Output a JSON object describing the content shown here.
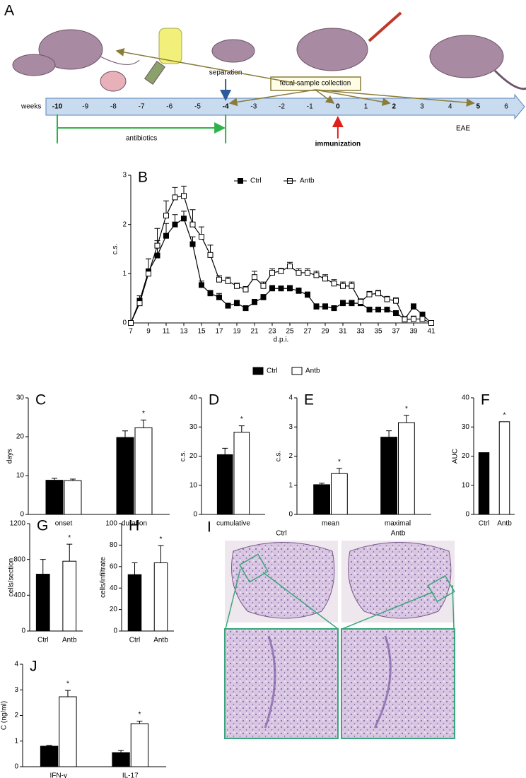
{
  "timeline": {
    "label": "A",
    "axis_label": "weeks",
    "ticks": [
      -10,
      -9,
      -8,
      -7,
      -6,
      -5,
      -4,
      -3,
      -2,
      -1,
      0,
      1,
      2,
      3,
      4,
      5,
      6
    ],
    "bold_weeks": [
      -10,
      -4,
      0,
      2,
      5
    ],
    "highlight_week": 0,
    "highlight_color": "#e0201b",
    "separation": {
      "label": "separation",
      "week": -4
    },
    "fecal_sample_collection": {
      "label": "fecal sample collection",
      "weeks": [
        -4,
        0,
        2,
        5
      ]
    },
    "antibiotics": {
      "label": "antibiotics",
      "weeks": [
        -10,
        -4
      ]
    },
    "immunization": {
      "label": "immunization",
      "week": 0
    },
    "disease": "EAE"
  },
  "chart_data": [
    {
      "panel": "B",
      "type": "line",
      "xlabel": "d.p.i.",
      "ylabel": "c.s.",
      "legend": "top",
      "x": [
        7,
        8,
        9,
        10,
        11,
        12,
        13,
        14,
        15,
        16,
        17,
        18,
        19,
        20,
        21,
        22,
        23,
        24,
        25,
        26,
        27,
        28,
        29,
        30,
        31,
        32,
        33,
        34,
        35,
        36,
        37,
        38,
        39,
        40,
        41
      ],
      "xlim": [
        7,
        41
      ],
      "xticks": [
        7,
        9,
        11,
        13,
        15,
        17,
        19,
        21,
        23,
        25,
        27,
        29,
        31,
        33,
        35,
        37,
        39,
        41
      ],
      "ylim": [
        0,
        3
      ],
      "yticks": [
        0,
        1,
        2,
        3
      ],
      "series": [
        {
          "name": "Ctrl",
          "marker": "filled",
          "color": "#000000",
          "values": [
            0,
            0.45,
            1.05,
            1.37,
            1.77,
            2.0,
            2.12,
            1.6,
            0.77,
            0.6,
            0.52,
            0.35,
            0.4,
            0.3,
            0.42,
            0.52,
            0.7,
            0.7,
            0.7,
            0.65,
            0.57,
            0.33,
            0.33,
            0.3,
            0.4,
            0.4,
            0.4,
            0.27,
            0.27,
            0.27,
            0.2,
            0.08,
            0.33,
            0.17,
            0
          ],
          "errors": [
            0,
            0.1,
            0.25,
            0.3,
            0.25,
            0.2,
            0.15,
            0.15,
            0.08,
            0.06,
            0.08,
            0.05,
            0.06,
            0.05,
            0.06,
            0.06,
            0.06,
            0.05,
            0.06,
            0.06,
            0.06,
            0.06,
            0.06,
            0.05,
            0.06,
            0.06,
            0.06,
            0.05,
            0.05,
            0.05,
            0.05,
            0.05,
            0.06,
            0.05,
            0
          ]
        },
        {
          "name": "Antb",
          "marker": "open",
          "color": "#000000",
          "values": [
            0,
            0.4,
            1.0,
            1.57,
            2.18,
            2.55,
            2.58,
            2.0,
            1.75,
            1.38,
            0.88,
            0.85,
            0.75,
            0.68,
            0.93,
            0.75,
            1.02,
            1.05,
            1.15,
            1.02,
            1.02,
            0.97,
            0.9,
            0.8,
            0.75,
            0.75,
            0.43,
            0.58,
            0.6,
            0.48,
            0.45,
            0.07,
            0.08,
            0.08,
            0
          ],
          "errors": [
            0,
            0.1,
            0.3,
            0.35,
            0.3,
            0.2,
            0.2,
            0.3,
            0.2,
            0.2,
            0.08,
            0.08,
            0.06,
            0.06,
            0.12,
            0.08,
            0.08,
            0.06,
            0.08,
            0.08,
            0.08,
            0.08,
            0.08,
            0.08,
            0.08,
            0.08,
            0.06,
            0.06,
            0.06,
            0.06,
            0.06,
            0.06,
            0.06,
            0.06,
            0
          ]
        }
      ]
    },
    {
      "panel": "C",
      "type": "bar",
      "ylabel": "days",
      "legend": "above",
      "categories": [
        "onset",
        "duration"
      ],
      "ylim": [
        0,
        30
      ],
      "yticks": [
        0,
        10,
        20,
        30
      ],
      "series": [
        {
          "name": "Ctrl",
          "fill": "#000000",
          "values": [
            8.8,
            19.8
          ],
          "errors": [
            0.5,
            1.7
          ]
        },
        {
          "name": "Antb",
          "fill": "#ffffff",
          "values": [
            8.7,
            22.3
          ],
          "errors": [
            0.4,
            2.0
          ],
          "significance": [
            null,
            "*"
          ]
        }
      ]
    },
    {
      "panel": "D",
      "type": "bar",
      "ylabel": "c.s.",
      "categories": [
        "cumulative"
      ],
      "ylim": [
        0,
        40
      ],
      "yticks": [
        0,
        10,
        20,
        30,
        40
      ],
      "series": [
        {
          "fill": "#000000",
          "values": [
            20.5
          ],
          "errors": [
            2.2
          ]
        },
        {
          "fill": "#ffffff",
          "values": [
            28.2
          ],
          "errors": [
            2.2
          ],
          "significance": [
            "*"
          ]
        }
      ]
    },
    {
      "panel": "E",
      "type": "bar",
      "ylabel": "c.s.",
      "categories": [
        "mean",
        "maximal"
      ],
      "ylim": [
        0,
        4
      ],
      "yticks": [
        0,
        1,
        2,
        3,
        4
      ],
      "series": [
        {
          "fill": "#000000",
          "values": [
            1.02,
            2.65
          ],
          "errors": [
            0.05,
            0.22
          ]
        },
        {
          "fill": "#ffffff",
          "values": [
            1.4,
            3.15
          ],
          "errors": [
            0.18,
            0.25
          ],
          "significance": [
            "*",
            "*"
          ]
        }
      ]
    },
    {
      "panel": "F",
      "type": "bar",
      "ylabel": "AUC",
      "categories": [
        "Ctrl",
        "Antb"
      ],
      "ylim": [
        0,
        40
      ],
      "yticks": [
        0,
        10,
        20,
        30,
        40
      ],
      "series": [
        {
          "colors": [
            "#000000",
            "#ffffff"
          ],
          "values": [
            21.2,
            31.8
          ],
          "significance": [
            null,
            "*"
          ]
        }
      ]
    },
    {
      "panel": "G",
      "type": "bar",
      "ylabel": "cells/section",
      "categories": [
        "Ctrl",
        "Antb"
      ],
      "ylim": [
        0,
        1200
      ],
      "yticks": [
        0,
        400,
        800,
        1200
      ],
      "series": [
        {
          "colors": [
            "#000000",
            "#ffffff"
          ],
          "values": [
            635,
            780
          ],
          "errors": [
            165,
            190
          ],
          "significance": [
            null,
            "*"
          ]
        }
      ]
    },
    {
      "panel": "H",
      "type": "bar",
      "ylabel": "cells/infiltrate",
      "categories": [
        "Ctrl",
        "Antb"
      ],
      "ylim": [
        0,
        100
      ],
      "yticks": [
        0,
        20,
        40,
        60,
        80,
        100
      ],
      "series": [
        {
          "colors": [
            "#000000",
            "#ffffff"
          ],
          "values": [
            52.5,
            63.5
          ],
          "errors": [
            11,
            16
          ],
          "significance": [
            null,
            "*"
          ]
        }
      ]
    },
    {
      "panel": "J",
      "type": "bar",
      "ylabel": "C (ng/ml)",
      "categories": [
        "IFN-γ",
        "IL-17"
      ],
      "ylim": [
        0,
        4
      ],
      "yticks": [
        0,
        1,
        2,
        3,
        4
      ],
      "series": [
        {
          "fill": "#000000",
          "values": [
            0.8,
            0.55
          ],
          "errors": [
            0.03,
            0.08
          ]
        },
        {
          "fill": "#ffffff",
          "values": [
            2.73,
            1.68
          ],
          "errors": [
            0.25,
            0.1
          ],
          "significance": [
            "*",
            "*"
          ]
        }
      ]
    }
  ],
  "histology": {
    "label": "I",
    "columns": [
      "Ctrl",
      "Antb"
    ]
  }
}
